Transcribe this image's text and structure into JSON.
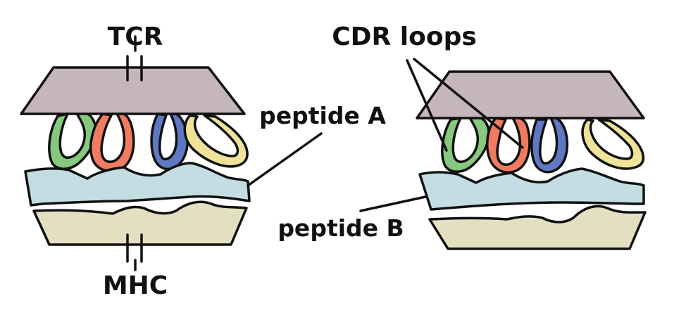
{
  "labels": {
    "tcr": "TCR",
    "mhc": "MHC",
    "peptide_a": "peptide A",
    "peptide_b": "peptide B",
    "cdr_loops": "CDR loops"
  },
  "colors": {
    "tcr": "#c4b6ba",
    "peptide": "#c3dde3",
    "mhc": "#e3e0c1",
    "loop_green": "#86c87d",
    "loop_red": "#f17b60",
    "loop_blue": "#5f78c4",
    "loop_yellow": "#efe39a",
    "outline": "#111111"
  }
}
